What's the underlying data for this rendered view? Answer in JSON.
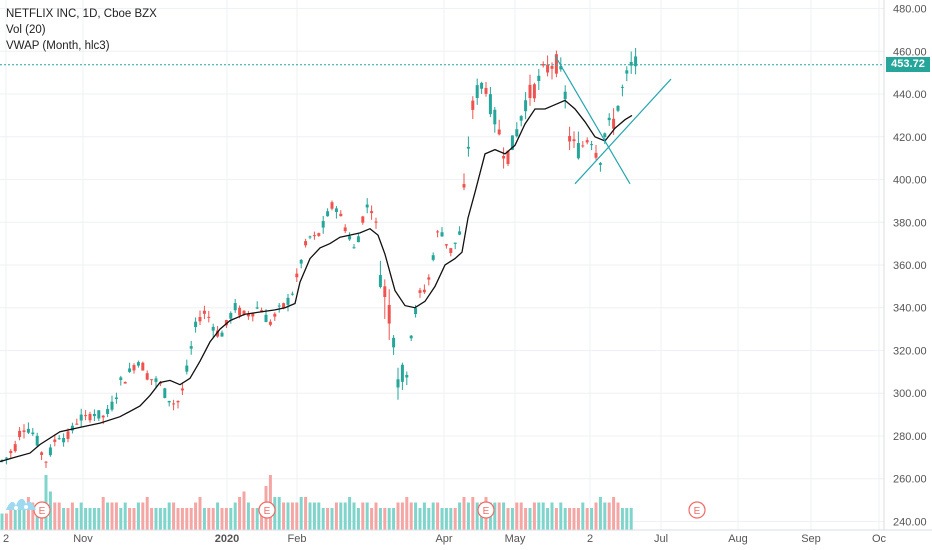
{
  "legend": {
    "symbol": "NETFLIX INC, 1D, Cboe BZX",
    "volume": "Vol (20)",
    "vwap": "VWAP (Month, hlc3)"
  },
  "last_price": "453.72",
  "colors": {
    "up": "#26a69a",
    "down": "#ef5350",
    "vol_up": "#7fd4cc",
    "vol_down": "#f4a6a4",
    "vwap": "#111111",
    "trendline": "#26a6b0",
    "grid": "#eef1f5",
    "axis_text": "#555555",
    "earnings": "#f06b68"
  },
  "chart_data": {
    "type": "candlestick",
    "title": "NETFLIX INC, 1D, Cboe BZX",
    "y_axis_ticks": [
      "480.00",
      "460.00",
      "440.00",
      "420.00",
      "400.00",
      "380.00",
      "360.00",
      "340.00",
      "320.00",
      "300.00",
      "280.00",
      "260.00",
      "240.00"
    ],
    "ylim": [
      236,
      484
    ],
    "x_axis_labels": [
      "2",
      "Nov",
      "2020",
      "Feb",
      "Apr",
      "May",
      "2",
      "Jul",
      "Aug",
      "Sep",
      "Oc"
    ],
    "earnings_label": "E",
    "last_price": 453.72,
    "price_path": [
      [
        0,
        268
      ],
      [
        5,
        269
      ],
      [
        10,
        272
      ],
      [
        15,
        275
      ],
      [
        20,
        282
      ],
      [
        25,
        285
      ],
      [
        30,
        283
      ],
      [
        35,
        280
      ],
      [
        40,
        274
      ],
      [
        45,
        268
      ],
      [
        50,
        272
      ],
      [
        55,
        278
      ],
      [
        60,
        281
      ],
      [
        65,
        279
      ],
      [
        70,
        280
      ],
      [
        75,
        286
      ],
      [
        80,
        289
      ],
      [
        85,
        287
      ],
      [
        90,
        290
      ],
      [
        95,
        291
      ],
      [
        100,
        289
      ],
      [
        105,
        289
      ],
      [
        110,
        292
      ],
      [
        115,
        298
      ],
      [
        120,
        305
      ],
      [
        125,
        307
      ],
      [
        130,
        310
      ],
      [
        135,
        314
      ],
      [
        140,
        316
      ],
      [
        145,
        310
      ],
      [
        150,
        307
      ],
      [
        155,
        306
      ],
      [
        160,
        304
      ],
      [
        165,
        300
      ],
      [
        170,
        297
      ],
      [
        175,
        295
      ],
      [
        180,
        297
      ],
      [
        185,
        306
      ],
      [
        190,
        318
      ],
      [
        195,
        330
      ],
      [
        200,
        336
      ],
      [
        205,
        338
      ],
      [
        210,
        335
      ],
      [
        215,
        330
      ],
      [
        220,
        327
      ],
      [
        225,
        330
      ],
      [
        230,
        336
      ],
      [
        235,
        340
      ],
      [
        240,
        338
      ],
      [
        245,
        336
      ],
      [
        250,
        338
      ],
      [
        255,
        339
      ],
      [
        260,
        341
      ],
      [
        265,
        336
      ],
      [
        270,
        333
      ],
      [
        275,
        336
      ],
      [
        280,
        339
      ],
      [
        285,
        341
      ],
      [
        290,
        345
      ],
      [
        295,
        350
      ],
      [
        300,
        360
      ],
      [
        305,
        368
      ],
      [
        310,
        373
      ],
      [
        315,
        372
      ],
      [
        320,
        375
      ],
      [
        325,
        380
      ],
      [
        330,
        386
      ],
      [
        335,
        389
      ],
      [
        340,
        383
      ],
      [
        345,
        378
      ],
      [
        350,
        373
      ],
      [
        355,
        366
      ],
      [
        360,
        377
      ],
      [
        365,
        386
      ],
      [
        370,
        389
      ],
      [
        375,
        383
      ],
      [
        380,
        360
      ],
      [
        385,
        347
      ],
      [
        390,
        338
      ],
      [
        395,
        328
      ],
      [
        400,
        300
      ],
      [
        405,
        310
      ],
      [
        410,
        325
      ],
      [
        415,
        337
      ],
      [
        420,
        346
      ],
      [
        425,
        349
      ],
      [
        430,
        355
      ],
      [
        435,
        370
      ],
      [
        440,
        378
      ],
      [
        445,
        372
      ],
      [
        450,
        366
      ],
      [
        455,
        370
      ],
      [
        460,
        375
      ],
      [
        465,
        398
      ],
      [
        470,
        425
      ],
      [
        475,
        440
      ],
      [
        480,
        443
      ],
      [
        485,
        446
      ],
      [
        490,
        436
      ],
      [
        495,
        428
      ],
      [
        500,
        421
      ],
      [
        505,
        412
      ],
      [
        510,
        412
      ],
      [
        515,
        420
      ],
      [
        520,
        428
      ],
      [
        525,
        436
      ],
      [
        530,
        440
      ],
      [
        535,
        443
      ],
      [
        540,
        447
      ],
      [
        545,
        451
      ],
      [
        550,
        453
      ],
      [
        555,
        456
      ],
      [
        560,
        450
      ],
      [
        565,
        440
      ],
      [
        570,
        418
      ],
      [
        575,
        415
      ],
      [
        580,
        414
      ],
      [
        585,
        418
      ],
      [
        590,
        422
      ],
      [
        595,
        415
      ],
      [
        600,
        410
      ],
      [
        605,
        422
      ],
      [
        610,
        425
      ],
      [
        615,
        428
      ],
      [
        620,
        439
      ],
      [
        625,
        445
      ],
      [
        630,
        452
      ],
      [
        634,
        454
      ]
    ],
    "vwap_line": [
      [
        0,
        268
      ],
      [
        15,
        270
      ],
      [
        30,
        272
      ],
      [
        40,
        276
      ],
      [
        60,
        282
      ],
      [
        80,
        284
      ],
      [
        100,
        286
      ],
      [
        120,
        289
      ],
      [
        140,
        294
      ],
      [
        150,
        299
      ],
      [
        160,
        305
      ],
      [
        170,
        306
      ],
      [
        180,
        304
      ],
      [
        190,
        307
      ],
      [
        200,
        315
      ],
      [
        210,
        324
      ],
      [
        220,
        330
      ],
      [
        230,
        334
      ],
      [
        245,
        337
      ],
      [
        260,
        338
      ],
      [
        275,
        339
      ],
      [
        285,
        340
      ],
      [
        295,
        342
      ],
      [
        300,
        352
      ],
      [
        310,
        363
      ],
      [
        320,
        368
      ],
      [
        330,
        370
      ],
      [
        340,
        373
      ],
      [
        350,
        374
      ],
      [
        360,
        375
      ],
      [
        370,
        377
      ],
      [
        378,
        374
      ],
      [
        385,
        365
      ],
      [
        395,
        348
      ],
      [
        405,
        341
      ],
      [
        415,
        340
      ],
      [
        425,
        343
      ],
      [
        435,
        350
      ],
      [
        445,
        360
      ],
      [
        455,
        363
      ],
      [
        462,
        366
      ],
      [
        468,
        382
      ],
      [
        475,
        394
      ],
      [
        485,
        412
      ],
      [
        495,
        414
      ],
      [
        505,
        412
      ],
      [
        515,
        416
      ],
      [
        525,
        426
      ],
      [
        535,
        433
      ],
      [
        545,
        433
      ],
      [
        555,
        435
      ],
      [
        565,
        437
      ],
      [
        575,
        433
      ],
      [
        585,
        427
      ],
      [
        595,
        420
      ],
      [
        605,
        418
      ],
      [
        615,
        424
      ],
      [
        625,
        428
      ],
      [
        632,
        430
      ]
    ],
    "trendlines": [
      {
        "from": [
          555,
          458
        ],
        "to": [
          630,
          398
        ]
      },
      {
        "from": [
          575,
          398
        ],
        "to": [
          671,
          447
        ]
      }
    ],
    "volume_bars": [
      3,
      3,
      4,
      4,
      4,
      5,
      6,
      5,
      4,
      3,
      10,
      7,
      5,
      5,
      4,
      4,
      5,
      4,
      5,
      4,
      4,
      4,
      4,
      6,
      5,
      5,
      5,
      4,
      5,
      4,
      4,
      5,
      5,
      6,
      4,
      4,
      4,
      4,
      5,
      5,
      4,
      4,
      4,
      4,
      5,
      6,
      4,
      4,
      4,
      5,
      4,
      4,
      4,
      5,
      6,
      7,
      5,
      4,
      4,
      4,
      8,
      10,
      6,
      6,
      5,
      5,
      5,
      5,
      6,
      6,
      5,
      5,
      5,
      4,
      4,
      4,
      5,
      5,
      5,
      6,
      5,
      4,
      5,
      5,
      4,
      5,
      4,
      4,
      4,
      4,
      5,
      5,
      6,
      5,
      5,
      4,
      5,
      4,
      5,
      5,
      4,
      4,
      4,
      4,
      5,
      6,
      5,
      6,
      5,
      5,
      6,
      5,
      5,
      5,
      5,
      4,
      4,
      5,
      5,
      4,
      4,
      5,
      5,
      5,
      4,
      5,
      4,
      5,
      4,
      4,
      4,
      4,
      5,
      4,
      4,
      5,
      6,
      5,
      5,
      6,
      5,
      4,
      4,
      4
    ]
  }
}
